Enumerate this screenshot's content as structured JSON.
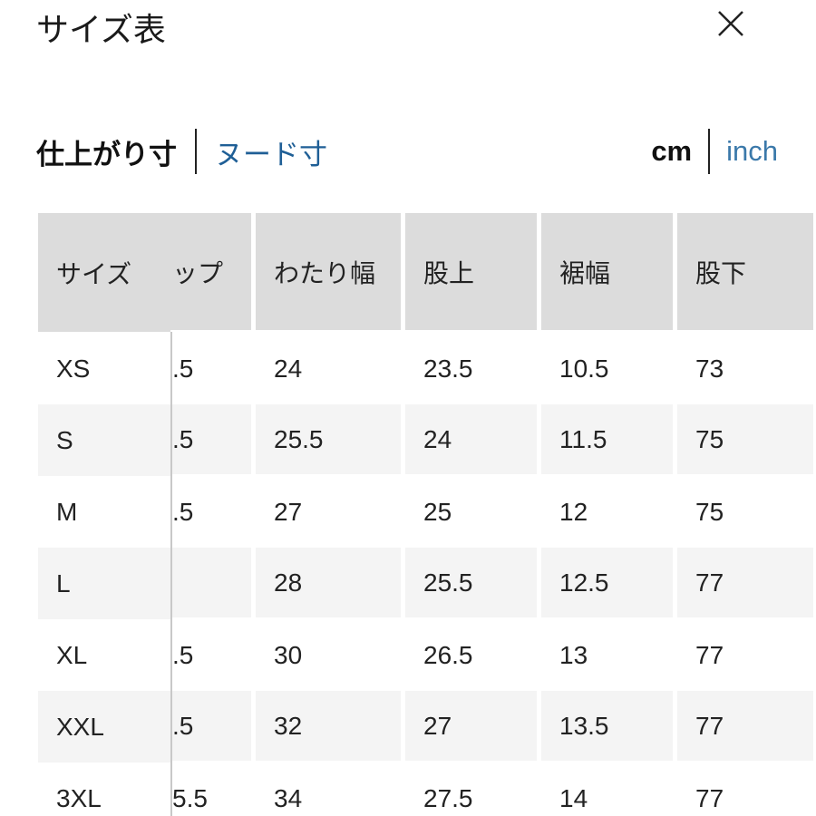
{
  "title": "サイズ表",
  "close_icon": "close-x-icon",
  "measure_tabs": [
    {
      "label": "仕上がり寸",
      "active": true
    },
    {
      "label": "ヌード寸",
      "active": false
    }
  ],
  "unit_tabs": [
    {
      "label": "cm",
      "active": true
    },
    {
      "label": "inch",
      "active": false
    }
  ],
  "colors": {
    "link": "#1f5f96",
    "header_bg": "#dcdcdc",
    "stripe_bg": "#f4f4f4"
  },
  "table": {
    "headers": [
      "サイズ",
      "ップ",
      "わたり幅",
      "股上",
      "裾幅",
      "股下"
    ],
    "rows": [
      [
        "XS",
        ".5",
        "24",
        "23.5",
        "10.5",
        "73"
      ],
      [
        "S",
        ".5",
        "25.5",
        "24",
        "11.5",
        "75"
      ],
      [
        "M",
        ".5",
        "27",
        "25",
        "12",
        "75"
      ],
      [
        "L",
        "",
        "28",
        "25.5",
        "12.5",
        "77"
      ],
      [
        "XL",
        ".5",
        "30",
        "26.5",
        "13",
        "77"
      ],
      [
        "XXL",
        ".5",
        "32",
        "27",
        "13.5",
        "77"
      ],
      [
        "3XL",
        "5.5",
        "34",
        "27.5",
        "14",
        "77"
      ]
    ]
  }
}
